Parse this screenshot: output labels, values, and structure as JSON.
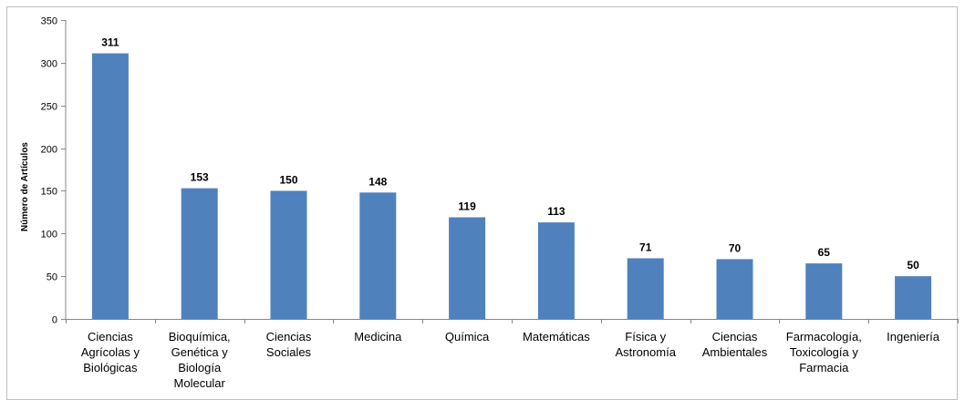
{
  "chart_data": {
    "type": "bar",
    "title": "",
    "xlabel": "",
    "ylabel": "Número de Artículos",
    "ylim": [
      0,
      350
    ],
    "yticks": [
      0,
      50,
      100,
      150,
      200,
      250,
      300,
      350
    ],
    "grid": false,
    "legend": "none",
    "bar_color": "#4f81bd",
    "categories": [
      [
        "Ciencias",
        "Agrícolas y",
        "Biológicas"
      ],
      [
        "Bioquímica,",
        "Genética y",
        "Biología",
        "Molecular"
      ],
      [
        "Ciencias",
        "Sociales"
      ],
      [
        "Medicina"
      ],
      [
        "Química"
      ],
      [
        "Matemáticas"
      ],
      [
        "Física y",
        "Astronomía"
      ],
      [
        "Ciencias",
        "Ambientales"
      ],
      [
        "Farmacología,",
        "Toxicología y",
        "Farmacia"
      ],
      [
        "Ingeniería"
      ]
    ],
    "values": [
      311,
      153,
      150,
      148,
      119,
      113,
      71,
      70,
      65,
      50
    ]
  }
}
